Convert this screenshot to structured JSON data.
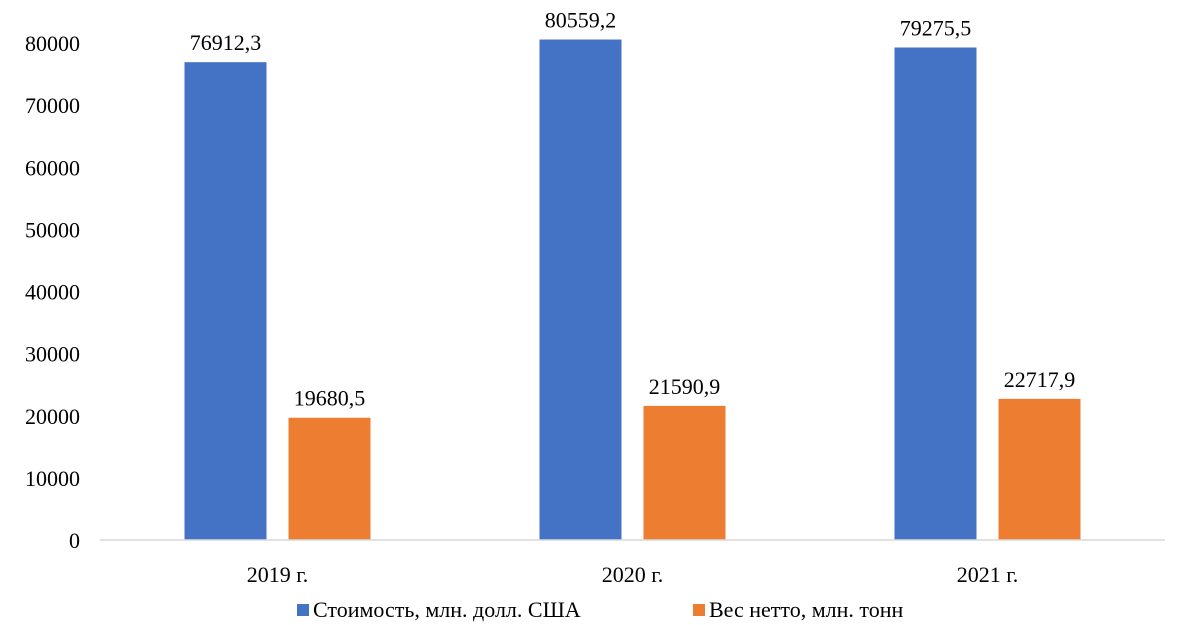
{
  "chart_data": {
    "type": "bar",
    "categories": [
      "2019 г.",
      "2020 г.",
      "2021 г."
    ],
    "series": [
      {
        "name": "Стоимость, млн. долл. США",
        "values": [
          76912.3,
          80559.2,
          79275.5
        ],
        "labels": [
          "76912,3",
          "80559,2",
          "79275,5"
        ],
        "color": "#4472C4"
      },
      {
        "name": "Вес нетто, млн. тонн",
        "values": [
          19680.5,
          21590.9,
          22717.9
        ],
        "labels": [
          "19680,5",
          "21590,9",
          "22717,9"
        ],
        "color": "#ED7D31"
      }
    ],
    "title": "",
    "xlabel": "",
    "ylabel": "",
    "ylim": [
      0,
      80000
    ],
    "yticks": [
      "0",
      "10000",
      "20000",
      "30000",
      "40000",
      "50000",
      "60000",
      "70000",
      "80000"
    ],
    "grid": false,
    "legend": "bottom"
  }
}
